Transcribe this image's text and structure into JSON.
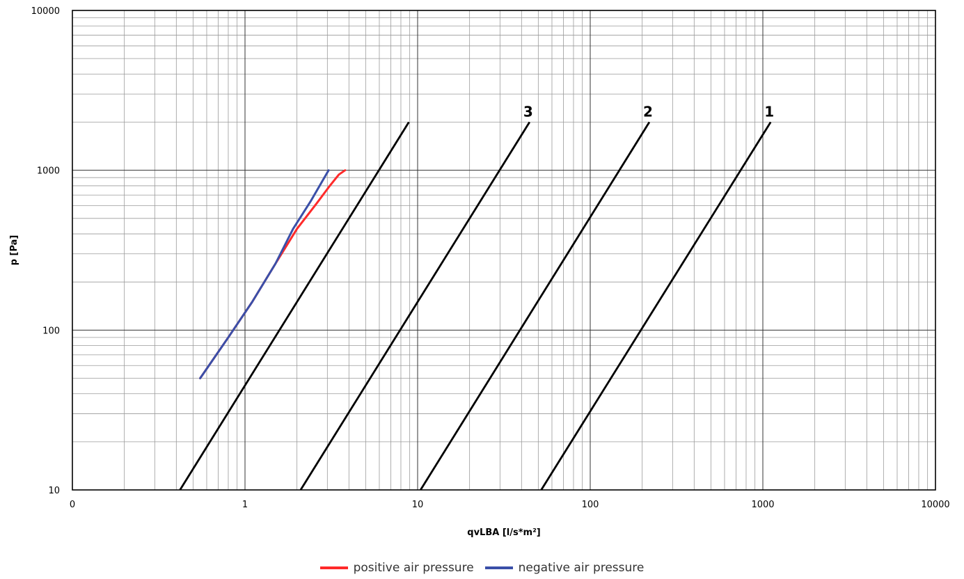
{
  "chart_data": {
    "type": "line",
    "xlabel": "qvLBA [l/s*m²]",
    "ylabel": "p [Pa]",
    "x_scale": "log",
    "y_scale": "log",
    "xlim": [
      0.1,
      10000
    ],
    "ylim": [
      10,
      10000
    ],
    "x_ticks": [
      {
        "value": 0.1,
        "label": "0"
      },
      {
        "value": 1,
        "label": "1"
      },
      {
        "value": 10,
        "label": "10"
      },
      {
        "value": 100,
        "label": "100"
      },
      {
        "value": 1000,
        "label": "1000"
      },
      {
        "value": 10000,
        "label": "10000"
      }
    ],
    "y_ticks": [
      {
        "value": 10,
        "label": "10"
      },
      {
        "value": 100,
        "label": "100"
      },
      {
        "value": 1000,
        "label": "1000"
      },
      {
        "value": 10000,
        "label": "10000"
      }
    ],
    "grid": true,
    "legend_position": "bottom-center",
    "class_lines": [
      {
        "label": "",
        "x": [
          0.42,
          8.9
        ],
        "y": [
          10,
          2000
        ]
      },
      {
        "label": "3",
        "x": [
          2.1,
          44.5
        ],
        "y": [
          10,
          2000
        ]
      },
      {
        "label": "2",
        "x": [
          10.4,
          220
        ],
        "y": [
          10,
          2000
        ]
      },
      {
        "label": "1",
        "x": [
          52,
          1110
        ],
        "y": [
          10,
          2000
        ]
      }
    ],
    "series": [
      {
        "name": "positive air pressure",
        "color": "#ff2a2a",
        "x": [
          0.55,
          0.8,
          1.1,
          1.5,
          2.0,
          2.6,
          3.1,
          3.5,
          3.8
        ],
        "y": [
          50,
          90,
          150,
          260,
          430,
          620,
          800,
          940,
          1000
        ]
      },
      {
        "name": "negative air pressure",
        "color": "#3a4fa8",
        "x": [
          0.55,
          0.8,
          1.1,
          1.5,
          1.9,
          2.4,
          3.05
        ],
        "y": [
          50,
          90,
          150,
          260,
          430,
          640,
          1000
        ]
      }
    ]
  }
}
